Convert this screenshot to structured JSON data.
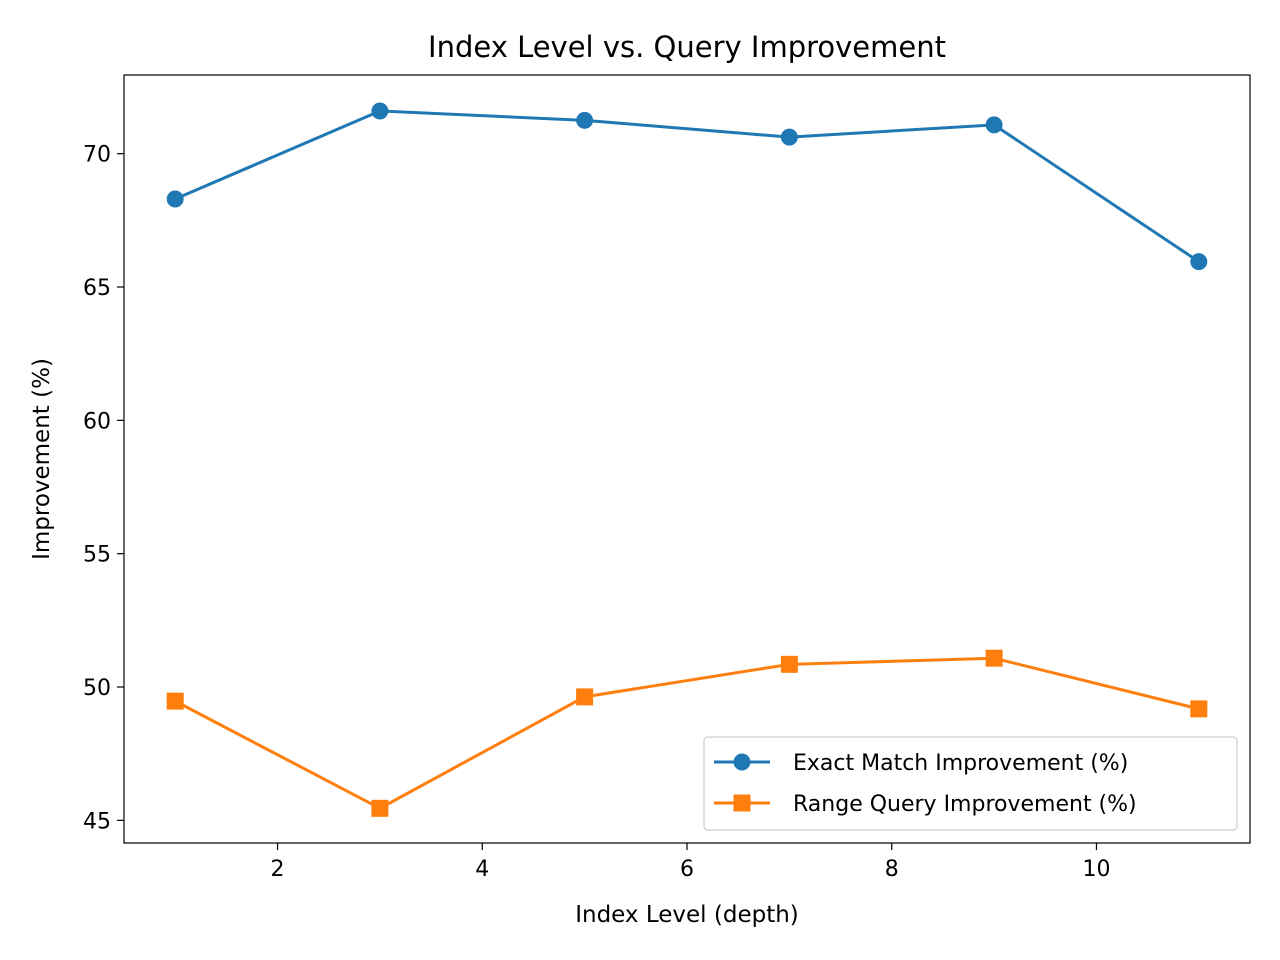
{
  "chart_data": {
    "type": "line",
    "title": "Index Level vs. Query Improvement",
    "xlabel": "Index Level (depth)",
    "ylabel": "Improvement (%)",
    "xlim": [
      0.5,
      11.5
    ],
    "ylim": [
      44.15,
      72.95
    ],
    "xticks": [
      2,
      4,
      6,
      8,
      10
    ],
    "yticks": [
      45,
      50,
      55,
      60,
      65,
      70
    ],
    "x": [
      1,
      3,
      5,
      7,
      9,
      11
    ],
    "series": [
      {
        "name": "Exact Match Improvement (%)",
        "values": [
          68.3,
          71.6,
          71.25,
          70.62,
          71.08,
          65.95
        ],
        "color": "#1f77b4",
        "marker": "circle"
      },
      {
        "name": "Range Query Improvement (%)",
        "values": [
          49.47,
          45.45,
          49.63,
          50.85,
          51.08,
          49.18
        ],
        "color": "#ff7f0e",
        "marker": "square"
      }
    ],
    "legend": "lower-right",
    "grid": false
  }
}
